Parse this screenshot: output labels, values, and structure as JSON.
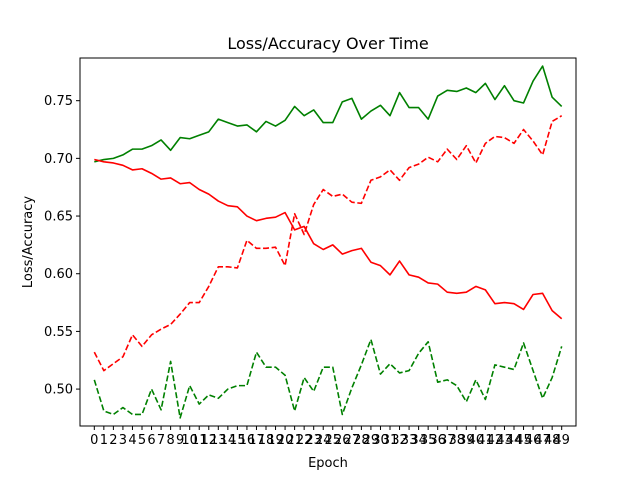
{
  "chart_data": {
    "type": "line",
    "title": "Loss/Accuracy Over Time",
    "xlabel": "Epoch",
    "ylabel": "Loss/Accuracy",
    "x": [
      0,
      1,
      2,
      3,
      4,
      5,
      6,
      7,
      8,
      9,
      10,
      11,
      12,
      13,
      14,
      15,
      16,
      17,
      18,
      19,
      20,
      21,
      22,
      23,
      24,
      25,
      26,
      27,
      28,
      29,
      30,
      31,
      32,
      33,
      34,
      35,
      36,
      37,
      38,
      39,
      40,
      41,
      42,
      43,
      44,
      45,
      46,
      47,
      48,
      49
    ],
    "x_ticks": [
      "0",
      "1",
      "2",
      "3",
      "4",
      "5",
      "6",
      "7",
      "8",
      "9",
      "10",
      "11",
      "12",
      "13",
      "14",
      "15",
      "16",
      "17",
      "18",
      "19",
      "20",
      "21",
      "22",
      "23",
      "24",
      "25",
      "26",
      "27",
      "28",
      "29",
      "30",
      "31",
      "32",
      "33",
      "34",
      "35",
      "36",
      "37",
      "38",
      "39",
      "40",
      "41",
      "42",
      "43",
      "44",
      "45",
      "46",
      "47",
      "48",
      "49"
    ],
    "y_ticks": [
      "0.50",
      "0.55",
      "0.60",
      "0.65",
      "0.70",
      "0.75"
    ],
    "y_tick_values": [
      0.5,
      0.55,
      0.6,
      0.65,
      0.7,
      0.75
    ],
    "xlim": [
      -1.5,
      50.5
    ],
    "ylim": [
      0.468,
      0.787
    ],
    "grid": false,
    "legend": false,
    "series": [
      {
        "color": "#008000",
        "style": "solid",
        "values": [
          0.697,
          0.699,
          0.7,
          0.703,
          0.708,
          0.708,
          0.711,
          0.716,
          0.707,
          0.718,
          0.717,
          0.72,
          0.723,
          0.734,
          0.731,
          0.728,
          0.729,
          0.723,
          0.732,
          0.728,
          0.733,
          0.745,
          0.737,
          0.742,
          0.731,
          0.731,
          0.749,
          0.752,
          0.734,
          0.741,
          0.746,
          0.737,
          0.757,
          0.744,
          0.744,
          0.734,
          0.754,
          0.759,
          0.758,
          0.761,
          0.757,
          0.765,
          0.751,
          0.763,
          0.75,
          0.748,
          0.767,
          0.78,
          0.753,
          0.745
        ]
      },
      {
        "color": "#ff0000",
        "style": "solid",
        "values": [
          0.699,
          0.697,
          0.696,
          0.694,
          0.69,
          0.691,
          0.687,
          0.682,
          0.683,
          0.678,
          0.679,
          0.673,
          0.669,
          0.663,
          0.659,
          0.658,
          0.65,
          0.646,
          0.648,
          0.649,
          0.653,
          0.638,
          0.641,
          0.626,
          0.621,
          0.625,
          0.617,
          0.62,
          0.622,
          0.61,
          0.607,
          0.599,
          0.611,
          0.599,
          0.597,
          0.592,
          0.591,
          0.584,
          0.583,
          0.584,
          0.589,
          0.586,
          0.574,
          0.575,
          0.574,
          0.569,
          0.582,
          0.583,
          0.568,
          0.561
        ]
      },
      {
        "color": "#ff0000",
        "style": "dashed",
        "values": [
          0.532,
          0.516,
          0.522,
          0.528,
          0.547,
          0.537,
          0.547,
          0.552,
          0.556,
          0.565,
          0.575,
          0.575,
          0.589,
          0.606,
          0.606,
          0.605,
          0.629,
          0.622,
          0.622,
          0.623,
          0.607,
          0.652,
          0.634,
          0.66,
          0.673,
          0.667,
          0.669,
          0.662,
          0.661,
          0.681,
          0.684,
          0.69,
          0.681,
          0.692,
          0.695,
          0.701,
          0.697,
          0.708,
          0.699,
          0.711,
          0.696,
          0.713,
          0.719,
          0.718,
          0.713,
          0.725,
          0.715,
          0.703,
          0.732,
          0.737
        ]
      },
      {
        "color": "#008000",
        "style": "dashed",
        "values": [
          0.508,
          0.481,
          0.478,
          0.484,
          0.478,
          0.478,
          0.5,
          0.482,
          0.524,
          0.475,
          0.503,
          0.487,
          0.495,
          0.492,
          0.5,
          0.503,
          0.503,
          0.532,
          0.519,
          0.519,
          0.512,
          0.481,
          0.51,
          0.498,
          0.519,
          0.519,
          0.478,
          0.501,
          0.521,
          0.543,
          0.513,
          0.522,
          0.514,
          0.516,
          0.531,
          0.541,
          0.506,
          0.508,
          0.503,
          0.489,
          0.508,
          0.491,
          0.521,
          0.519,
          0.517,
          0.54,
          0.516,
          0.492,
          0.51,
          0.537
        ]
      }
    ]
  }
}
